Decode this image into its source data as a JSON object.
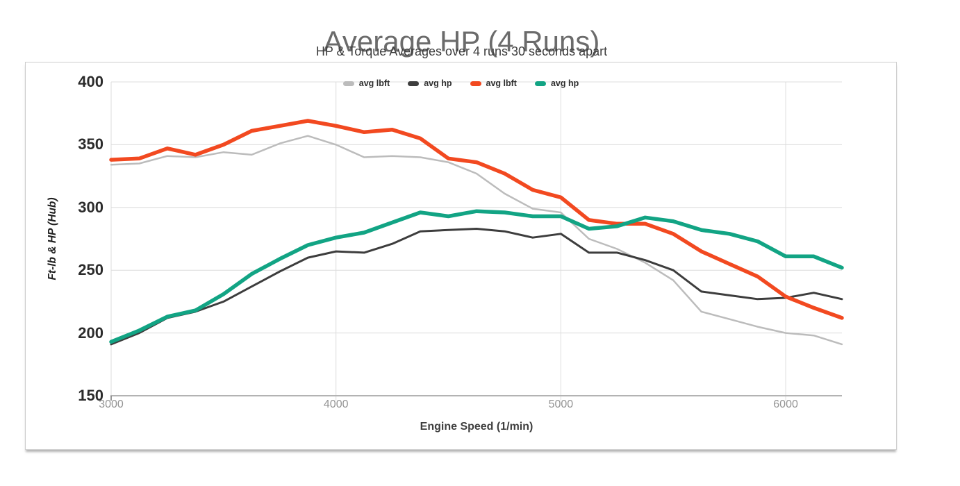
{
  "header": {
    "title": "Average HP (4 Runs)",
    "subtitle": "HP & Torque Averages over 4 runs 30 seconds apart"
  },
  "legend": [
    {
      "label": "avg lbft",
      "color": "#bcbcbc"
    },
    {
      "label": "avg hp",
      "color": "#3d3d3d"
    },
    {
      "label": "avg lbft",
      "color": "#f24920"
    },
    {
      "label": "avg hp",
      "color": "#12a484"
    }
  ],
  "colors": {
    "grid": "#dcdcdc",
    "axis_line": "#b3b3b3",
    "axis_tick": "#767676",
    "title_text": "#6b6b6b",
    "subtitle_text": "#3d3d3d",
    "y_tick_text": "#2b2b2b",
    "x_tick_text": "#949494",
    "card_border": "#cdcdcd",
    "background": "#ffffff"
  },
  "chart_data": {
    "type": "line",
    "title": "Average HP (4 Runs)",
    "subtitle": "HP & Torque Averages over 4 runs 30 seconds apart",
    "xlabel": "Engine Speed (1/min)",
    "ylabel": "Ft-lb & HP (Hub)",
    "xlim": [
      3000,
      6250
    ],
    "ylim": [
      150,
      400
    ],
    "x_ticks": [
      3000,
      4000,
      5000,
      6000
    ],
    "y_ticks": [
      150,
      200,
      250,
      300,
      350,
      400
    ],
    "grid": true,
    "legend_position": "top-center",
    "x": [
      3000,
      3125,
      3250,
      3375,
      3500,
      3625,
      3750,
      3875,
      4000,
      4125,
      4250,
      4375,
      4500,
      4625,
      4750,
      4875,
      5000,
      5125,
      5250,
      5375,
      5500,
      5625,
      5750,
      5875,
      6000,
      6125,
      6250
    ],
    "series": [
      {
        "name": "avg lbft",
        "color": "#bcbcbc",
        "width": 2.5,
        "values": [
          334,
          335,
          341,
          340,
          344,
          342,
          351,
          357,
          350,
          340,
          341,
          340,
          336,
          327,
          311,
          299,
          296,
          275,
          267,
          256,
          242,
          217,
          211,
          205,
          200,
          198,
          191
        ]
      },
      {
        "name": "avg hp",
        "color": "#3d3d3d",
        "width": 3,
        "values": [
          191,
          200,
          212,
          217,
          225,
          237,
          249,
          260,
          265,
          264,
          271,
          281,
          282,
          283,
          281,
          276,
          279,
          264,
          264,
          258,
          250,
          233,
          230,
          227,
          228,
          232,
          227
        ]
      },
      {
        "name": "avg lbft",
        "color": "#f24920",
        "width": 5.5,
        "values": [
          338,
          339,
          347,
          342,
          350,
          361,
          365,
          369,
          365,
          360,
          362,
          355,
          339,
          336,
          327,
          314,
          308,
          290,
          287,
          287,
          279,
          265,
          255,
          245,
          229,
          220,
          212
        ]
      },
      {
        "name": "avg hp",
        "color": "#12a484",
        "width": 5.5,
        "values": [
          193,
          202,
          213,
          218,
          231,
          247,
          259,
          270,
          276,
          280,
          288,
          296,
          293,
          297,
          296,
          293,
          293,
          283,
          285,
          292,
          289,
          282,
          279,
          273,
          261,
          261,
          252
        ]
      }
    ]
  }
}
